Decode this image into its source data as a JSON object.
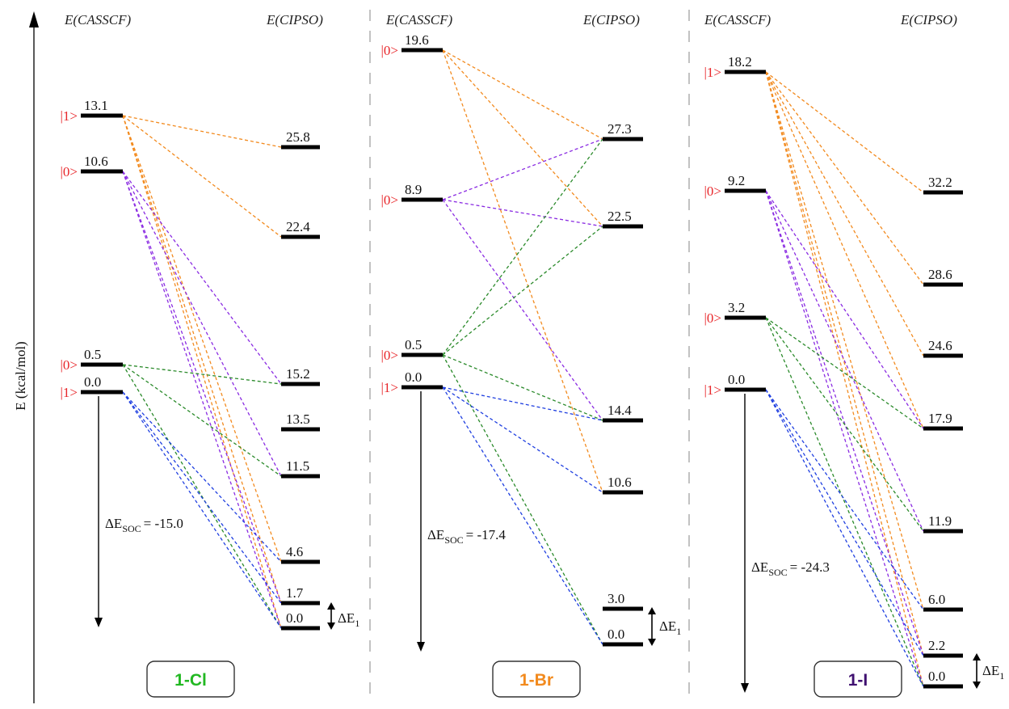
{
  "axis": {
    "label": "E (kcal/mol)"
  },
  "colors": {
    "ket": "#e8262a",
    "orange": "#f28a1e",
    "purple": "#8a2be2",
    "green": "#2a8a2a",
    "blue": "#1f3fe0",
    "cl_label": "#22b822",
    "br_label": "#f28a1e",
    "i_label": "#3f1070",
    "level": "#000000"
  },
  "panels": [
    {
      "id": "cl",
      "header_left": "E(CASSCF)",
      "header_right": "E(CIPSO)",
      "compound_label": "1-Cl",
      "label_color_key": "cl_label",
      "soc_prefix": "ΔE",
      "soc_sub": "SOC",
      "soc_value": "= -15.0",
      "delta_label": "ΔE",
      "delta_sub": "1",
      "casscf_levels": [
        {
          "ket": "|1>",
          "value": "13.1"
        },
        {
          "ket": "|0>",
          "value": "10.6"
        },
        {
          "ket": "|0>",
          "value": "0.5"
        },
        {
          "ket": "|1>",
          "value": "0.0"
        }
      ],
      "cipso_levels": [
        "25.8",
        "22.4",
        "15.2",
        "13.5",
        "11.5",
        "4.6",
        "1.7",
        "0.0"
      ],
      "connections": [
        {
          "from": 0,
          "to": 0,
          "color": "orange"
        },
        {
          "from": 0,
          "to": 1,
          "color": "orange"
        },
        {
          "from": 0,
          "to": 5,
          "color": "orange"
        },
        {
          "from": 0,
          "to": 6,
          "color": "orange"
        },
        {
          "from": 0,
          "to": 7,
          "color": "orange"
        },
        {
          "from": 1,
          "to": 2,
          "color": "purple"
        },
        {
          "from": 1,
          "to": 4,
          "color": "purple"
        },
        {
          "from": 1,
          "to": 6,
          "color": "purple"
        },
        {
          "from": 1,
          "to": 7,
          "color": "purple"
        },
        {
          "from": 2,
          "to": 2,
          "color": "green"
        },
        {
          "from": 2,
          "to": 4,
          "color": "green"
        },
        {
          "from": 2,
          "to": 7,
          "color": "green"
        },
        {
          "from": 3,
          "to": 6,
          "color": "blue"
        },
        {
          "from": 3,
          "to": 7,
          "color": "blue"
        },
        {
          "from": 3,
          "to": 5,
          "color": "blue"
        }
      ]
    },
    {
      "id": "br",
      "header_left": "E(CASSCF)",
      "header_right": "E(CIPSO)",
      "compound_label": "1-Br",
      "label_color_key": "br_label",
      "soc_prefix": "ΔE",
      "soc_sub": "SOC",
      "soc_value": "= -17.4",
      "delta_label": "ΔE",
      "delta_sub": "1",
      "casscf_levels": [
        {
          "ket": "|0>",
          "value": "19.6"
        },
        {
          "ket": "|0>",
          "value": "8.9"
        },
        {
          "ket": "|0>",
          "value": "0.5"
        },
        {
          "ket": "|1>",
          "value": "0.0"
        }
      ],
      "cipso_levels": [
        "27.3",
        "22.5",
        "14.4",
        "10.6",
        "3.0",
        "0.0"
      ],
      "connections": [
        {
          "from": 0,
          "to": 0,
          "color": "orange"
        },
        {
          "from": 0,
          "to": 1,
          "color": "orange"
        },
        {
          "from": 0,
          "to": 3,
          "color": "orange"
        },
        {
          "from": 1,
          "to": 0,
          "color": "purple"
        },
        {
          "from": 1,
          "to": 1,
          "color": "purple"
        },
        {
          "from": 1,
          "to": 2,
          "color": "purple"
        },
        {
          "from": 2,
          "to": 0,
          "color": "green"
        },
        {
          "from": 2,
          "to": 1,
          "color": "green"
        },
        {
          "from": 2,
          "to": 2,
          "color": "green"
        },
        {
          "from": 2,
          "to": 5,
          "color": "green"
        },
        {
          "from": 3,
          "to": 2,
          "color": "blue"
        },
        {
          "from": 3,
          "to": 3,
          "color": "blue"
        },
        {
          "from": 3,
          "to": 5,
          "color": "blue"
        }
      ]
    },
    {
      "id": "i",
      "header_left": "E(CASSCF)",
      "header_right": "E(CIPSO)",
      "compound_label": "1-I",
      "label_color_key": "i_label",
      "soc_prefix": "ΔE",
      "soc_sub": "SOC",
      "soc_value": "= -24.3",
      "delta_label": "ΔE",
      "delta_sub": "1",
      "casscf_levels": [
        {
          "ket": "|1>",
          "value": "18.2"
        },
        {
          "ket": "|0>",
          "value": "9.2"
        },
        {
          "ket": "|0>",
          "value": "3.2"
        },
        {
          "ket": "|1>",
          "value": "0.0"
        }
      ],
      "cipso_levels": [
        "32.2",
        "28.6",
        "24.6",
        "17.9",
        "11.9",
        "6.0",
        "2.2",
        "0.0"
      ],
      "connections": [
        {
          "from": 0,
          "to": 0,
          "color": "orange"
        },
        {
          "from": 0,
          "to": 1,
          "color": "orange"
        },
        {
          "from": 0,
          "to": 2,
          "color": "orange"
        },
        {
          "from": 0,
          "to": 3,
          "color": "orange"
        },
        {
          "from": 0,
          "to": 5,
          "color": "orange"
        },
        {
          "from": 0,
          "to": 6,
          "color": "orange"
        },
        {
          "from": 0,
          "to": 7,
          "color": "orange"
        },
        {
          "from": 1,
          "to": 3,
          "color": "purple"
        },
        {
          "from": 1,
          "to": 4,
          "color": "purple"
        },
        {
          "from": 1,
          "to": 6,
          "color": "purple"
        },
        {
          "from": 1,
          "to": 7,
          "color": "purple"
        },
        {
          "from": 2,
          "to": 3,
          "color": "green"
        },
        {
          "from": 2,
          "to": 4,
          "color": "green"
        },
        {
          "from": 2,
          "to": 7,
          "color": "green"
        },
        {
          "from": 3,
          "to": 5,
          "color": "blue"
        },
        {
          "from": 3,
          "to": 6,
          "color": "blue"
        },
        {
          "from": 3,
          "to": 7,
          "color": "blue"
        }
      ]
    }
  ]
}
